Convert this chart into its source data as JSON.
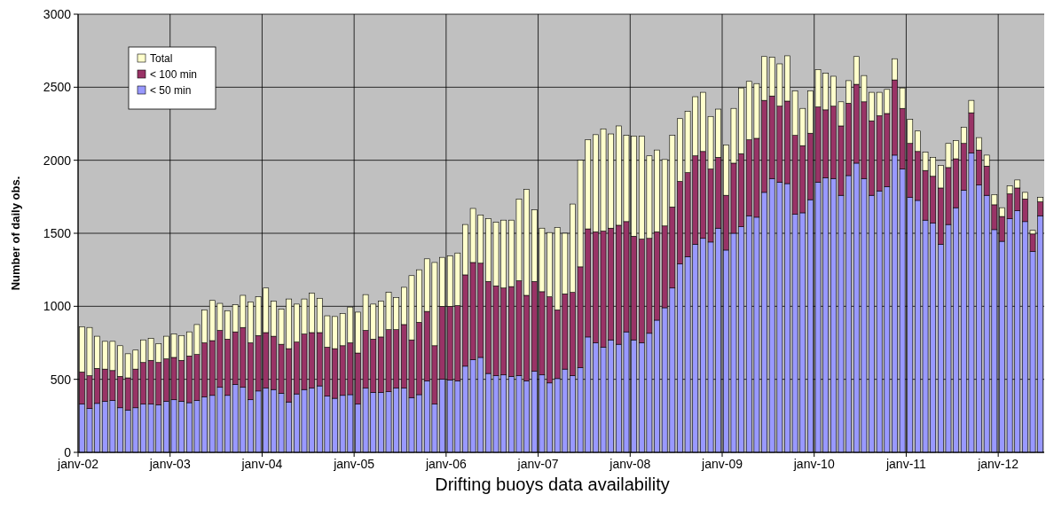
{
  "chart_data": {
    "type": "bar",
    "title": "Drifting buoys data availability",
    "ylabel": "Number of daily obs.",
    "categories": [
      "janv-02",
      null,
      null,
      null,
      null,
      null,
      null,
      null,
      null,
      null,
      null,
      null,
      "janv-03",
      null,
      null,
      null,
      null,
      null,
      null,
      null,
      null,
      null,
      null,
      null,
      "janv-04",
      null,
      null,
      null,
      null,
      null,
      null,
      null,
      null,
      null,
      null,
      null,
      "janv-05",
      null,
      null,
      null,
      null,
      null,
      null,
      null,
      null,
      null,
      null,
      null,
      "janv-06",
      null,
      null,
      null,
      null,
      null,
      null,
      null,
      null,
      null,
      null,
      null,
      "janv-07",
      null,
      null,
      null,
      null,
      null,
      null,
      null,
      null,
      null,
      null,
      null,
      "janv-08",
      null,
      null,
      null,
      null,
      null,
      null,
      null,
      null,
      null,
      null,
      null,
      "janv-09",
      null,
      null,
      null,
      null,
      null,
      null,
      null,
      null,
      null,
      null,
      null,
      "janv-10",
      null,
      null,
      null,
      null,
      null,
      null,
      null,
      null,
      null,
      null,
      null,
      "janv-11",
      null,
      null,
      null,
      null,
      null,
      null,
      null,
      null,
      null,
      null,
      null,
      "janv-12",
      null,
      null,
      null,
      null,
      null
    ],
    "stacked": true,
    "series": [
      {
        "name": "< 50 min",
        "color": "#9999ff",
        "values": [
          330,
          300,
          335,
          350,
          355,
          305,
          290,
          305,
          330,
          330,
          325,
          350,
          360,
          350,
          340,
          355,
          380,
          390,
          445,
          390,
          465,
          445,
          360,
          420,
          440,
          430,
          405,
          345,
          400,
          430,
          440,
          455,
          385,
          370,
          390,
          395,
          330,
          440,
          410,
          410,
          415,
          440,
          440,
          375,
          395,
          490,
          330,
          500,
          495,
          490,
          590,
          635,
          650,
          540,
          525,
          530,
          520,
          525,
          490,
          555,
          530,
          475,
          505,
          570,
          525,
          580,
          790,
          750,
          720,
          770,
          740,
          825,
          770,
          750,
          815,
          905,
          990,
          1125,
          1290,
          1340,
          1425,
          1465,
          1440,
          1535,
          1385,
          1500,
          1545,
          1620,
          1610,
          1780,
          1875,
          1850,
          1840,
          1630,
          1640,
          1730,
          1850,
          1880,
          1875,
          1760,
          1895,
          1980,
          1875,
          1760,
          1790,
          1820,
          2035,
          1940,
          1745,
          1725,
          1590,
          1570,
          1425,
          1560,
          1675,
          1795,
          2050,
          1830,
          1760,
          1525,
          1445,
          1600,
          1655,
          1580,
          1375,
          1620
        ]
      },
      {
        "name": "< 100 min",
        "color": "#993366",
        "values": [
          220,
          225,
          240,
          220,
          205,
          215,
          220,
          265,
          285,
          300,
          290,
          290,
          290,
          280,
          320,
          315,
          370,
          375,
          390,
          385,
          360,
          410,
          390,
          380,
          380,
          365,
          335,
          365,
          355,
          380,
          380,
          365,
          335,
          340,
          340,
          355,
          350,
          395,
          365,
          380,
          425,
          400,
          435,
          395,
          495,
          475,
          400,
          500,
          505,
          515,
          625,
          665,
          645,
          630,
          615,
          595,
          615,
          650,
          585,
          615,
          570,
          590,
          470,
          515,
          570,
          690,
          740,
          760,
          795,
          765,
          815,
          755,
          710,
          710,
          650,
          605,
          560,
          555,
          565,
          575,
          605,
          595,
          500,
          485,
          375,
          480,
          500,
          520,
          540,
          630,
          565,
          520,
          565,
          540,
          460,
          455,
          515,
          465,
          495,
          475,
          495,
          540,
          525,
          510,
          515,
          500,
          515,
          415,
          370,
          335,
          340,
          320,
          385,
          390,
          335,
          320,
          275,
          240,
          200,
          170,
          170,
          170,
          155,
          155,
          120,
          95
        ]
      },
      {
        "name": "Total",
        "color": "#ffffcc",
        "values": [
          310,
          330,
          220,
          190,
          200,
          210,
          165,
          130,
          155,
          150,
          130,
          155,
          160,
          170,
          165,
          205,
          225,
          275,
          185,
          195,
          185,
          220,
          280,
          265,
          305,
          240,
          240,
          340,
          260,
          240,
          270,
          235,
          215,
          220,
          220,
          245,
          280,
          245,
          240,
          245,
          255,
          220,
          255,
          440,
          360,
          360,
          570,
          335,
          345,
          360,
          345,
          370,
          330,
          430,
          435,
          465,
          455,
          560,
          725,
          490,
          435,
          440,
          565,
          415,
          605,
          730,
          610,
          665,
          700,
          645,
          680,
          590,
          685,
          705,
          565,
          560,
          455,
          490,
          430,
          420,
          405,
          405,
          360,
          330,
          345,
          375,
          450,
          400,
          375,
          300,
          265,
          290,
          310,
          305,
          255,
          290,
          255,
          250,
          205,
          165,
          155,
          190,
          180,
          195,
          160,
          165,
          145,
          140,
          165,
          140,
          125,
          130,
          155,
          165,
          125,
          110,
          85,
          85,
          75,
          70,
          60,
          55,
          55,
          45,
          25,
          30
        ]
      }
    ],
    "ylim": [
      0,
      3000
    ],
    "yticks": [
      0,
      500,
      1000,
      1500,
      2000,
      2500,
      3000
    ],
    "grid": true,
    "legend": "top left"
  }
}
